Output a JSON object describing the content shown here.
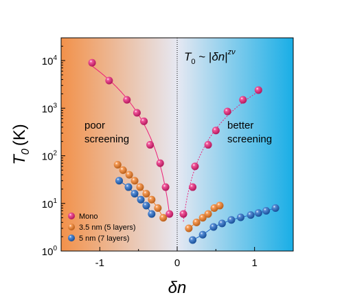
{
  "chart_data": {
    "type": "scatter",
    "title": "",
    "xlabel": "δn",
    "ylabel_symbol": "T",
    "ylabel_subscript": "0",
    "ylabel_unit": "(K)",
    "xlim": [
      -1.5,
      1.5
    ],
    "ylim": [
      1,
      30000
    ],
    "yscale": "log",
    "x_ticks": [
      -1,
      0,
      1
    ],
    "x_tick_labels": [
      "-1",
      "0",
      "1"
    ],
    "y_ticks": [
      1,
      10,
      100,
      1000,
      10000
    ],
    "y_tick_labels": [
      {
        "base": "10",
        "exp": "0"
      },
      {
        "base": "10",
        "exp": "1"
      },
      {
        "base": "10",
        "exp": "2"
      },
      {
        "base": "10",
        "exp": "3"
      },
      {
        "base": "10",
        "exp": "4"
      }
    ],
    "formula": {
      "lhs": "T",
      "lhs_sub": "0",
      "mid": " ~ |",
      "var": "δn",
      "rhs": "|",
      "exponent": "zν"
    },
    "annotations": [
      {
        "lines": [
          "poor",
          "screening"
        ]
      },
      {
        "lines": [
          "better",
          "screening"
        ]
      }
    ],
    "legend": {
      "position": "bottom-left"
    },
    "background": {
      "left_color": "#f2914a",
      "mid_color": "#e6e8f2",
      "right_color": "#19aee6"
    },
    "series": [
      {
        "name": "Mono",
        "color": "#ec1d78",
        "x": [
          -1.1,
          -0.88,
          -0.65,
          -0.52,
          -0.43,
          -0.35,
          -0.22,
          -0.15,
          -0.1,
          0.08,
          0.2,
          0.23,
          0.4,
          0.5,
          0.65,
          0.85,
          1.05
        ],
        "y": [
          9000,
          3800,
          1500,
          800,
          530,
          170,
          70,
          22,
          6,
          6,
          22,
          60,
          170,
          340,
          850,
          1500,
          2400
        ]
      },
      {
        "name": "3.5 nm (5 layers)",
        "color": "#f57c20",
        "x": [
          -0.77,
          -0.7,
          -0.62,
          -0.55,
          -0.48,
          -0.4,
          -0.33,
          -0.25,
          -0.18,
          0.15,
          0.25,
          0.33,
          0.4,
          0.48,
          0.55
        ],
        "y": [
          65,
          50,
          40,
          30,
          22,
          16,
          12,
          8,
          5,
          3,
          4,
          5,
          6,
          8,
          9
        ]
      },
      {
        "name": "5 nm (7 layers)",
        "color": "#1d66c8",
        "x": [
          -0.75,
          -0.63,
          -0.55,
          -0.47,
          -0.4,
          -0.33,
          0.2,
          0.33,
          0.47,
          0.58,
          0.7,
          0.82,
          0.95,
          1.05,
          1.15,
          1.27
        ],
        "y": [
          30,
          22,
          16,
          12,
          9,
          6,
          1.7,
          2.2,
          3.2,
          3.8,
          4.5,
          5.1,
          5.7,
          6.3,
          7,
          8
        ]
      }
    ]
  }
}
